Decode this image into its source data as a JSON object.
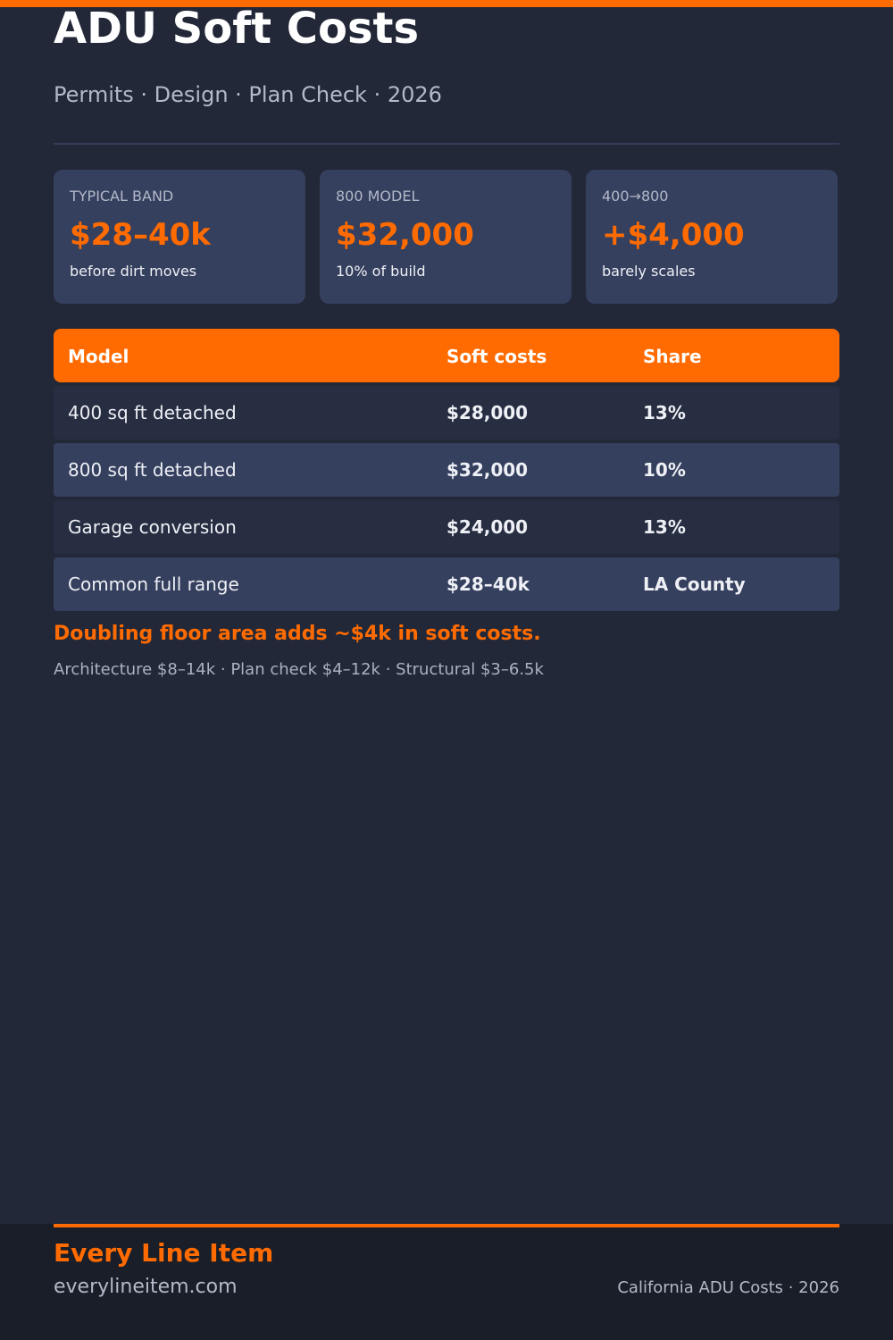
{
  "header": {
    "title": "ADU Soft Costs",
    "subtitle": "Permits · Design · Plan Check · 2026"
  },
  "stat_cards": [
    {
      "label": "TYPICAL BAND",
      "value": "$28–40k",
      "note": "before dirt moves"
    },
    {
      "label": "800 MODEL",
      "value": "$32,000",
      "note": "10% of build"
    },
    {
      "label": "400→800",
      "value": "+$4,000",
      "note": "barely scales"
    }
  ],
  "table": {
    "headers": [
      "Model",
      "Soft costs",
      "Share"
    ],
    "rows": [
      {
        "model": "400 sq ft detached",
        "cost": "$28,000",
        "share": "13%"
      },
      {
        "model": "800 sq ft detached",
        "cost": "$32,000",
        "share": "10%"
      },
      {
        "model": "Garage conversion",
        "cost": "$24,000",
        "share": "13%"
      },
      {
        "model": "Common full range",
        "cost": "$28–40k",
        "share": "LA County"
      }
    ]
  },
  "callout": "Doubling floor area adds ~$4k in soft costs.",
  "breakdown": "Architecture $8–14k · Plan check $4–12k · Structural $3–6.5k",
  "footer": {
    "brand": "Every Line Item",
    "site": "everylineitem.com",
    "tagline": "California ADU Costs · 2026"
  },
  "colors": {
    "accent": "#ff6b00",
    "background": "#222838",
    "card": "#353f5e",
    "footer": "#1a1e29"
  }
}
